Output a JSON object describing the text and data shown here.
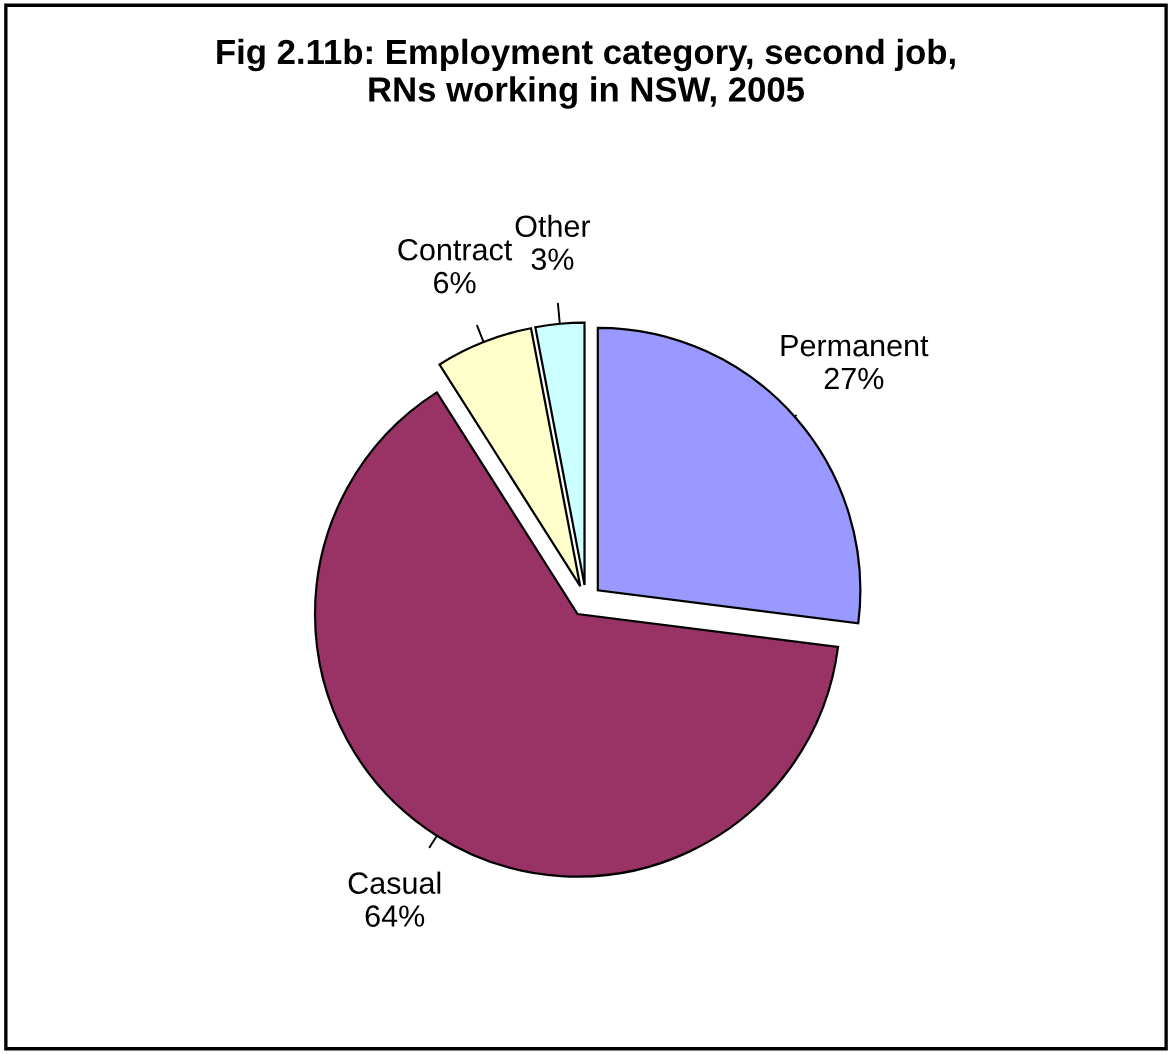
{
  "chart_data": {
    "type": "pie",
    "title": "Fig 2.11b: Employment category, second job,\nRNs working in NSW, 2005",
    "categories": [
      "Permanent",
      "Casual",
      "Contract",
      "Other"
    ],
    "values": [
      27,
      64,
      6,
      3
    ],
    "value_labels": [
      "27%",
      "64%",
      "6%",
      "3%"
    ],
    "colors": [
      "#9999ff",
      "#993366",
      "#ffffcc",
      "#ccffff"
    ]
  }
}
